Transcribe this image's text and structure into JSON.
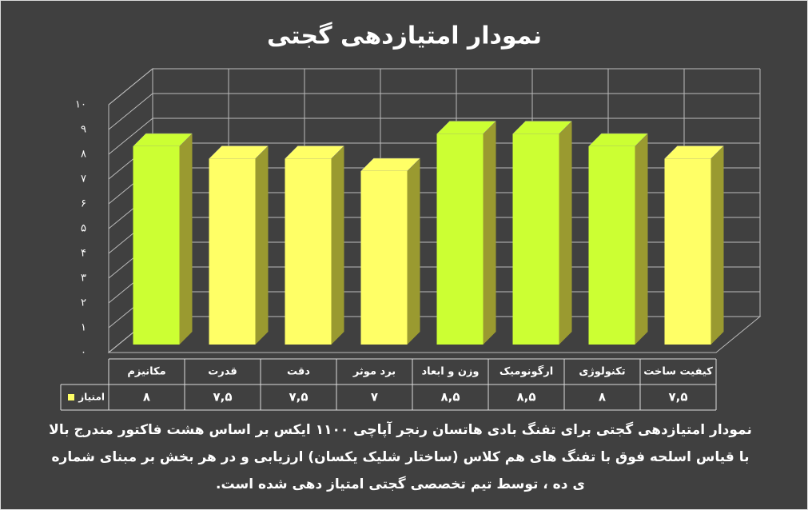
{
  "chart_data": {
    "type": "bar3d",
    "title": "نمودار امتیازدهی گجتی",
    "categories": [
      "مکانیزم",
      "قدرت",
      "دقت",
      "برد موثر",
      "وزن و ابعاد",
      "ارگونومیک",
      "تکنولوژی",
      "کیفیت ساخت"
    ],
    "series": [
      {
        "name": "امتیاز",
        "color": "#ffff66",
        "values": [
          8,
          7.5,
          7.5,
          7,
          8.5,
          8.5,
          8,
          7.5
        ],
        "value_labels": [
          "۸",
          "۷,۵",
          "۷,۵",
          "۷",
          "۸,۵",
          "۸,۵",
          "۸",
          "۷,۵"
        ],
        "colors": [
          "#ccff33",
          "#ffff66",
          "#ffff66",
          "#ffff66",
          "#ccff33",
          "#ccff33",
          "#ccff33",
          "#ffff66"
        ]
      }
    ],
    "ylim": [
      0,
      10
    ],
    "yticks": [
      {
        "value": 0,
        "label": "۰"
      },
      {
        "value": 1,
        "label": "۱"
      },
      {
        "value": 2,
        "label": "۲"
      },
      {
        "value": 3,
        "label": "۳"
      },
      {
        "value": 4,
        "label": "۴"
      },
      {
        "value": 5,
        "label": "۵"
      },
      {
        "value": 6,
        "label": "۶"
      },
      {
        "value": 7,
        "label": "۷"
      },
      {
        "value": 8,
        "label": "۸"
      },
      {
        "value": 9,
        "label": "۹"
      },
      {
        "value": 10,
        "label": "۱۰"
      }
    ],
    "grid": true,
    "caption": "نمودار امتیازدهی گجتی برای تفنگ بادی هاتسان رنجر آپاچی ۱۱۰۰ ایکس بر اساس هشت فاکتور مندرج بالا با قیاس اسلحه فوق با تفنگ های هم کلاس (ساختار شلیک یکسان) ارزیابی و در هر بخش بر مبنای شماره ی ده ، توسط تیم تخصصی گجتی امتیاز دهی شده است."
  }
}
